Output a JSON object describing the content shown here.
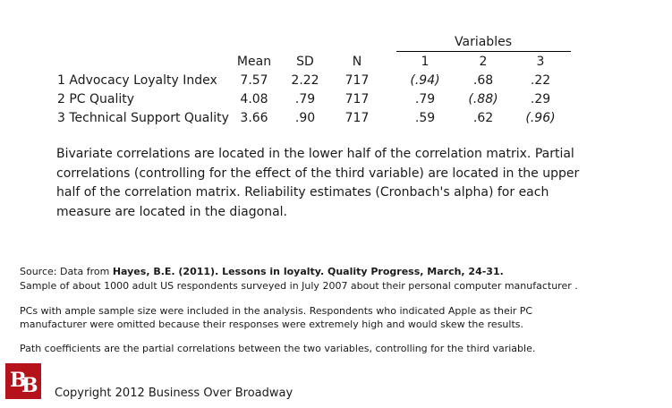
{
  "table": {
    "variables_heading": "Variables",
    "columns": [
      "Mean",
      "SD",
      "N",
      "1",
      "2",
      "3"
    ],
    "rows": [
      {
        "label": "1 Advocacy Loyalty Index",
        "mean": "7.57",
        "sd": "2.22",
        "n": "717",
        "v1": "(.94)",
        "v2": ".68",
        "v3": ".22"
      },
      {
        "label": "2 PC Quality",
        "mean": "4.08",
        "sd": ".79",
        "n": "717",
        "v1": ".79",
        "v2": "(.88)",
        "v3": ".29"
      },
      {
        "label": "3 Technical Support Quality",
        "mean": "3.66",
        "sd": ".90",
        "n": "717",
        "v1": ".59",
        "v2": ".62",
        "v3": "(.96)"
      }
    ]
  },
  "note": "Bivariate correlations are located in the lower half of the correlation matrix. Partial correlations (controlling for the effect of the third variable) are located in the upper half of the correlation matrix. Reliability estimates (Cronbach's alpha) for each measure are located in the diagonal.",
  "footer": {
    "source_prefix": "Source: Data from ",
    "source_bold": "Hayes, B.E.  (2011). Lessons in loyalty. Quality Progress, March, 24-31.",
    "sample": "Sample of about 1000 adult US respondents surveyed in July  2007 about their personal computer manufacturer .",
    "pcs_line1": "PCs with ample sample size were included in the analysis. Respondents who indicated Apple as their PC",
    "pcs_line2": "manufacturer were omitted because their responses were extremely high and would skew the results.",
    "path": "Path coefficients are the partial correlations between the two variables, controlling for the third variable."
  },
  "logo": {
    "letter1": "B",
    "letter2": "B"
  },
  "copyright": "Copyright 2012 Business Over Broadway"
}
